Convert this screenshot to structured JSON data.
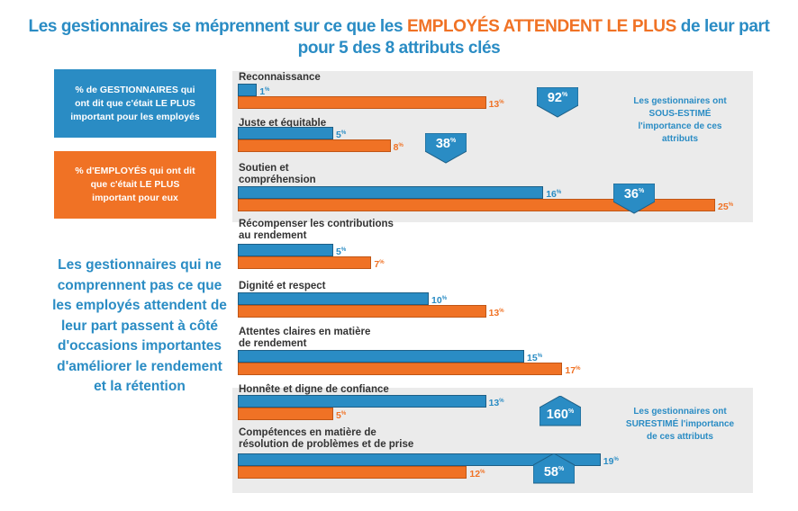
{
  "title": {
    "part1": "Les gestionnaires se méprennent sur ce que les ",
    "highlight": "EMPLOYÉS ATTENDENT LE PLUS",
    "part2": " de leur part",
    "line2": "pour 5 des 8 attributs clés"
  },
  "legend": {
    "managers": "% de GESTIONNAIRES qui ont dit que c'était LE PLUS important pour les employés",
    "employees": "% d'EMPLOYÉS qui ont dit que c'était LE PLUS important pour eux"
  },
  "side_text": "Les gestionnaires qui ne comprennent pas ce que les employés attendent de leur part passent à côté d'occasions importantes d'améliorer le rendement et la rétention",
  "notes": {
    "under": "Les gestionnaires ont SOUS-ESTIMÉ l'importance de ces attributs",
    "over": "Les gestionnaires ont SURESTIMÉ l'importance de ces attributs"
  },
  "colors": {
    "managers": "#2a8cc4",
    "employees": "#f07225",
    "band": "#ebebeb"
  },
  "chart_data": {
    "type": "bar",
    "orientation": "horizontal",
    "unit": "%",
    "categories": [
      "Reconnaissance",
      "Juste et équitable",
      "Soutien et compréhension",
      "Récompenser les contributions au rendement",
      "Dignité et respect",
      "Attentes claires en matière de rendement",
      "Honnête et digne de confiance",
      "Compétences en matière de résolution de problèmes et de prise"
    ],
    "series": [
      {
        "name": "% de GESTIONNAIRES qui ont dit que c'était LE PLUS important pour les employés",
        "values": [
          1,
          5,
          16,
          5,
          10,
          15,
          13,
          19
        ]
      },
      {
        "name": "% d'EMPLOYÉS qui ont dit que c'était LE PLUS important pour eux",
        "values": [
          13,
          8,
          25,
          7,
          13,
          17,
          5,
          12
        ]
      }
    ],
    "badges": [
      {
        "category": "Reconnaissance",
        "value": "92",
        "direction": "down"
      },
      {
        "category": "Juste et équitable",
        "value": "38",
        "direction": "down"
      },
      {
        "category": "Soutien et compréhension",
        "value": "36",
        "direction": "down"
      },
      {
        "category": "Honnête et digne de confiance",
        "value": "160",
        "direction": "up"
      },
      {
        "category": "Compétences en matière de résolution de problèmes et de prise",
        "value": "58",
        "direction": "up"
      }
    ]
  }
}
